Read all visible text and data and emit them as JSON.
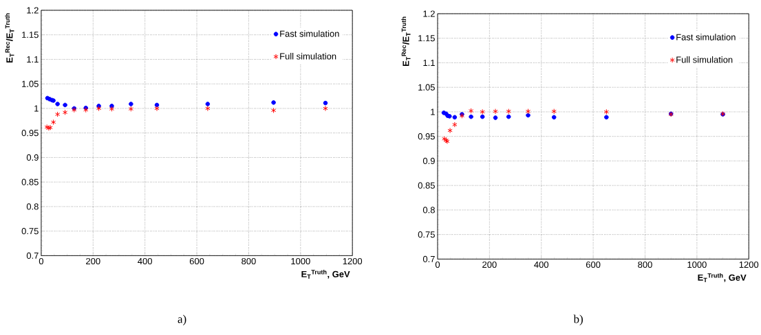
{
  "chart_data": [
    {
      "type": "scatter",
      "xlabel": "E$_{T}$$^{Truth}$, GeV",
      "ylabel": "E$_{T}$$^{Rec}$/E$_{T}$$^{Truth}$",
      "annotations": [
        "a)"
      ],
      "xlim": [
        0,
        1200
      ],
      "ylim": [
        0.7,
        1.2
      ],
      "xticks": [
        0,
        200,
        400,
        600,
        800,
        1000,
        1200
      ],
      "yticks": [
        0.7,
        0.75,
        0.8,
        0.85,
        0.9,
        0.95,
        1,
        1.05,
        1.1,
        1.15,
        1.2
      ],
      "grid": true,
      "legend": "top right",
      "series": [
        {
          "name": "Fast simulation",
          "color": "#0000ff",
          "marker": "circle",
          "x": [
            24,
            32,
            41,
            47,
            63,
            92,
            127,
            172,
            222,
            272,
            346,
            446,
            642,
            896,
            1096
          ],
          "values": [
            1.021,
            1.019,
            1.017,
            1.016,
            1.009,
            1.007,
            1.0,
            1.001,
            1.005,
            1.005,
            1.009,
            1.007,
            1.009,
            1.012,
            1.011
          ]
        },
        {
          "name": "Full simulation",
          "color": "#ff0000",
          "marker": "cross",
          "x": [
            22,
            29,
            35,
            47,
            63,
            92,
            127,
            172,
            222,
            272,
            346,
            446,
            642,
            896,
            1096
          ],
          "values": [
            0.962,
            0.96,
            0.961,
            0.972,
            0.988,
            0.992,
            0.997,
            0.997,
            1.0,
            0.999,
            0.999,
            1.0,
            1.0,
            0.996,
            1.0
          ]
        }
      ]
    },
    {
      "type": "scatter",
      "xlabel": "E$_{T}$$^{Truth}$, GeV",
      "ylabel": "E$_{T}$$^{Rec}$/E$_{T}$$^{Truth}$",
      "annotations": [
        "b)"
      ],
      "xlim": [
        0,
        1200
      ],
      "ylim": [
        0.7,
        1.2
      ],
      "xticks": [
        0,
        200,
        400,
        600,
        800,
        1000,
        1200
      ],
      "yticks": [
        0.7,
        0.75,
        0.8,
        0.85,
        0.9,
        0.95,
        1,
        1.05,
        1.1,
        1.15,
        1.2
      ],
      "grid": true,
      "legend": "top right",
      "series": [
        {
          "name": "Fast simulation",
          "color": "#0000ff",
          "marker": "circle",
          "x": [
            24,
            33,
            39,
            46,
            66,
            94,
            129,
            173,
            223,
            274,
            349,
            449,
            651,
            900,
            1100
          ],
          "values": [
            0.998,
            0.996,
            0.992,
            0.991,
            0.989,
            0.995,
            0.99,
            0.99,
            0.988,
            0.99,
            0.993,
            0.989,
            0.989,
            0.996,
            0.995
          ]
        },
        {
          "name": "Full simulation",
          "color": "#ff0000",
          "marker": "cross",
          "x": [
            26,
            33,
            37,
            48,
            66,
            94,
            129,
            173,
            223,
            274,
            349,
            449,
            651,
            900,
            1100
          ],
          "values": [
            0.945,
            0.942,
            0.94,
            0.962,
            0.974,
            0.992,
            1.002,
            1.0,
            1.001,
            1.001,
            1.001,
            1.001,
            1.0,
            0.995,
            0.996
          ]
        }
      ]
    }
  ]
}
